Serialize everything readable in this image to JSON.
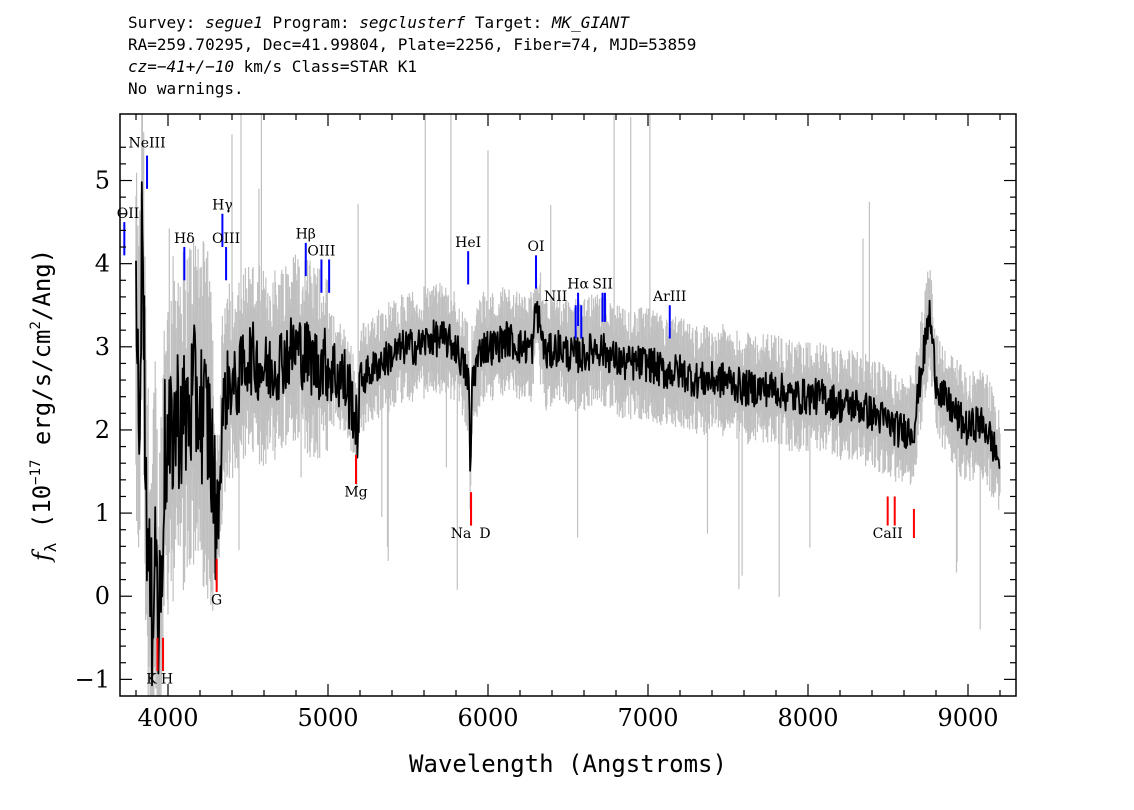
{
  "header": {
    "survey_label": "Survey:",
    "survey": "segue1",
    "program_label": "Program:",
    "program": "segclusterf",
    "target_label": "Target:",
    "target": "MK_GIANT",
    "line2": "RA=259.70295, Dec=41.99804, Plate=2256, Fiber=74, MJD=53859",
    "cz_label": "cz=",
    "cz_value": "−41+/−10",
    "cz_rest": " km/s Class=STAR K1",
    "line4": "No warnings."
  },
  "chart_data": {
    "type": "line",
    "xlabel": "Wavelength (Angstroms)",
    "ylabel_prefix": "f",
    "ylabel_sub": "λ",
    "ylabel_rest": " (10",
    "ylabel_exp": "−17",
    "ylabel_rest2": " erg/s/cm",
    "ylabel_exp2": "2",
    "ylabel_rest3": "/Ang)",
    "xlim": [
      3700,
      9300
    ],
    "ylim": [
      -1.2,
      5.8
    ],
    "x_ticks": [
      {
        "value": 4000,
        "label": "4000"
      },
      {
        "value": 5000,
        "label": "5000"
      },
      {
        "value": 6000,
        "label": "6000"
      },
      {
        "value": 7000,
        "label": "7000"
      },
      {
        "value": 8000,
        "label": "8000"
      },
      {
        "value": 9000,
        "label": "9000"
      }
    ],
    "y_ticks": [
      {
        "value": -1,
        "label": "−1"
      },
      {
        "value": 0,
        "label": "0"
      },
      {
        "value": 1,
        "label": "1"
      },
      {
        "value": 2,
        "label": "2"
      },
      {
        "value": 3,
        "label": "3"
      },
      {
        "value": 4,
        "label": "4"
      },
      {
        "value": 5,
        "label": "5"
      }
    ],
    "series": [
      {
        "color": "#000000",
        "x": [
          3800,
          3820,
          3840,
          3860,
          3880,
          3900,
          3920,
          3940,
          3960,
          3980,
          4000,
          4030,
          4060,
          4100,
          4140,
          4180,
          4220,
          4260,
          4300,
          4320,
          4340,
          4380,
          4420,
          4460,
          4500,
          4560,
          4620,
          4680,
          4740,
          4800,
          4860,
          4920,
          4980,
          5040,
          5100,
          5160,
          5180,
          5200,
          5260,
          5320,
          5400,
          5480,
          5560,
          5640,
          5720,
          5800,
          5880,
          5890,
          5900,
          5960,
          6040,
          6120,
          6200,
          6280,
          6300,
          6360,
          6440,
          6520,
          6600,
          6680,
          6760,
          6840,
          6920,
          7000,
          7100,
          7200,
          7300,
          7400,
          7500,
          7600,
          7700,
          7800,
          7900,
          8000,
          8100,
          8200,
          8300,
          8400,
          8500,
          8560,
          8600,
          8660,
          8700,
          8760,
          8800,
          8840,
          8880,
          8920,
          8960,
          9000,
          9060,
          9120,
          9200
        ],
        "y": [
          3.2,
          2.2,
          4.8,
          1.6,
          0.2,
          -0.3,
          1.0,
          -0.5,
          0.5,
          1.8,
          1.6,
          2.0,
          2.2,
          2.1,
          2.3,
          2.4,
          2.2,
          2.0,
          0.9,
          1.2,
          2.2,
          2.6,
          2.5,
          2.7,
          2.9,
          2.8,
          2.7,
          2.8,
          2.9,
          3.0,
          2.9,
          2.8,
          2.8,
          2.7,
          2.6,
          2.3,
          1.9,
          2.6,
          2.7,
          2.8,
          2.9,
          3.0,
          3.0,
          3.1,
          3.1,
          3.0,
          2.6,
          1.3,
          2.6,
          3.0,
          3.0,
          3.1,
          3.0,
          3.0,
          3.5,
          2.9,
          3.0,
          2.9,
          2.9,
          3.0,
          2.9,
          2.8,
          2.8,
          2.8,
          2.7,
          2.7,
          2.6,
          2.6,
          2.6,
          2.5,
          2.5,
          2.5,
          2.4,
          2.4,
          2.4,
          2.3,
          2.3,
          2.2,
          2.1,
          2.0,
          2.0,
          2.0,
          2.6,
          3.4,
          2.6,
          2.4,
          2.3,
          2.2,
          2.1,
          2.0,
          2.1,
          2.0,
          1.6
        ]
      }
    ],
    "emission_lines": [
      {
        "label": "NeIII",
        "x": 3869,
        "y_low": 4.9,
        "y_high": 5.3,
        "label_y": 5.4
      },
      {
        "label": "OII",
        "x": 3727,
        "y_low": 4.1,
        "y_high": 4.5,
        "label_y": 4.55
      },
      {
        "label": "Hδ",
        "x": 4102,
        "y_low": 3.8,
        "y_high": 4.2,
        "label_y": 4.25
      },
      {
        "label": "Hγ",
        "x": 4340,
        "y_low": 4.2,
        "y_high": 4.6,
        "label_y": 4.65
      },
      {
        "label": "OIII",
        "x": 4363,
        "y_low": 3.8,
        "y_high": 4.2,
        "label_y": 4.25
      },
      {
        "label": "Hβ",
        "x": 4861,
        "y_low": 3.85,
        "y_high": 4.25,
        "label_y": 4.3
      },
      {
        "label": "OIII",
        "x": 4959,
        "y_low": 3.65,
        "y_high": 4.05,
        "label_y": 4.1
      },
      {
        "label": "OIII",
        "x": 5007,
        "y_low": 3.65,
        "y_high": 4.05,
        "label_y": 4.1
      },
      {
        "label": "HeI",
        "x": 5876,
        "y_low": 3.75,
        "y_high": 4.15,
        "label_y": 4.2
      },
      {
        "label": "OI",
        "x": 6300,
        "y_low": 3.7,
        "y_high": 4.1,
        "label_y": 4.15
      },
      {
        "label": "NII",
        "x": 6548,
        "y_low": 3.1,
        "y_high": 3.5,
        "label_y": 3.55
      },
      {
        "label": "Hα",
        "x": 6563,
        "y_low": 3.25,
        "y_high": 3.65,
        "label_y": 3.7
      },
      {
        "label": "NII",
        "x": 6583,
        "y_low": 3.1,
        "y_high": 3.5,
        "label_y": 3.55
      },
      {
        "label": "SII",
        "x": 6716,
        "y_low": 3.3,
        "y_high": 3.65,
        "label_y": 3.7
      },
      {
        "label": "SII",
        "x": 6731,
        "y_low": 3.3,
        "y_high": 3.65,
        "label_y": 3.7
      },
      {
        "label": "ArIII",
        "x": 7136,
        "y_low": 3.1,
        "y_high": 3.5,
        "label_y": 3.55
      }
    ],
    "absorption_lines": [
      {
        "label": "K",
        "x": 3934,
        "y_low": -0.9,
        "y_high": -0.5,
        "label_y": -1.05
      },
      {
        "label": "H",
        "x": 3969,
        "y_low": -0.9,
        "y_high": -0.5,
        "label_y": -1.05
      },
      {
        "label": "G",
        "x": 4304,
        "y_low": 0.05,
        "y_high": 0.45,
        "label_y": -0.1
      },
      {
        "label": "Mg",
        "x": 5175,
        "y_low": 1.35,
        "y_high": 1.7,
        "label_y": 1.2
      },
      {
        "label": "Na",
        "x": 5894,
        "y_low": 0.85,
        "y_high": 1.25,
        "label_y": 0.7
      },
      {
        "label": "D",
        "x": 5894,
        "y_low": 0.85,
        "y_high": 1.25,
        "label_y": 0.7
      },
      {
        "label": "CaII",
        "x": 8498,
        "y_low": 0.85,
        "y_high": 1.2,
        "label_y": 0.7
      },
      {
        "label": "CaII",
        "x": 8542,
        "y_low": 0.85,
        "y_high": 1.2,
        "label_y": 0.7
      },
      {
        "label": "CaII",
        "x": 8662,
        "y_low": 0.7,
        "y_high": 1.05,
        "label_y": 0.7
      }
    ],
    "colors": {
      "flux": "#000000",
      "error_band": "#c0c0c0",
      "emission": "#0000ff",
      "absorption": "#ff0000",
      "frame": "#000000"
    }
  }
}
